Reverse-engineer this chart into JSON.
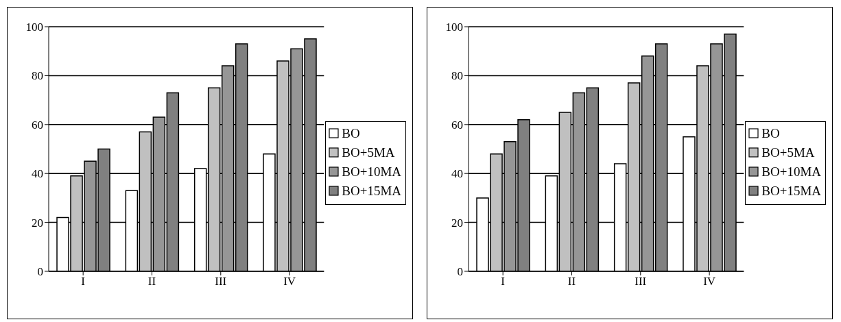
{
  "chart_data": [
    {
      "type": "bar",
      "categories": [
        "I",
        "II",
        "III",
        "IV"
      ],
      "ylim": [
        0,
        100
      ],
      "yticks": [
        0,
        20,
        40,
        60,
        80,
        100
      ],
      "grid": "y",
      "legend": "right",
      "series": [
        {
          "name": "BO",
          "color": "#ffffff",
          "values": [
            22,
            33,
            42,
            48
          ]
        },
        {
          "name": "BO+5MA",
          "color": "#c0c0c0",
          "values": [
            39,
            57,
            75,
            86
          ]
        },
        {
          "name": "BO+10MA",
          "color": "#969696",
          "values": [
            45,
            63,
            84,
            91
          ]
        },
        {
          "name": "BO+15MA",
          "color": "#808080",
          "values": [
            50,
            73,
            93,
            95
          ]
        }
      ]
    },
    {
      "type": "bar",
      "categories": [
        "I",
        "II",
        "III",
        "IV"
      ],
      "ylim": [
        0,
        100
      ],
      "yticks": [
        0,
        20,
        40,
        60,
        80,
        100
      ],
      "grid": "y",
      "legend": "right",
      "series": [
        {
          "name": "BO",
          "color": "#ffffff",
          "values": [
            30,
            39,
            44,
            55
          ]
        },
        {
          "name": "BO+5MA",
          "color": "#c0c0c0",
          "values": [
            48,
            65,
            77,
            84
          ]
        },
        {
          "name": "BO+10MA",
          "color": "#969696",
          "values": [
            53,
            73,
            88,
            93
          ]
        },
        {
          "name": "BO+15MA",
          "color": "#808080",
          "values": [
            62,
            75,
            93,
            97
          ]
        }
      ]
    }
  ]
}
